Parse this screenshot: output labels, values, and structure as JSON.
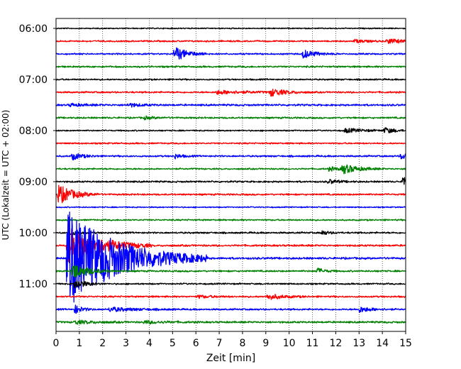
{
  "chart_data": {
    "type": "line",
    "title": "",
    "xlabel": "Zeit  [min]",
    "ylabel": "UTC (Lokalzeit = UTC + 02:00)",
    "xlim": [
      0,
      15
    ],
    "x_ticks": [
      "0",
      "1",
      "2",
      "3",
      "4",
      "5",
      "6",
      "7",
      "8",
      "9",
      "10",
      "11",
      "12",
      "13",
      "14",
      "15"
    ],
    "y_ticks": [
      "06:00",
      "07:00",
      "08:00",
      "09:00",
      "10:00",
      "11:00"
    ],
    "grid": "vertical dotted",
    "colors": [
      "#000000",
      "#ff0000",
      "#0000ff",
      "#008000"
    ],
    "row_interval_min": 15,
    "traces": [
      {
        "start": "06:00",
        "base_amp": 0.7,
        "events": []
      },
      {
        "start": "06:15",
        "base_amp": 0.9,
        "events": [
          {
            "t": 14.2,
            "amp": 3,
            "dur": 0.8
          },
          {
            "t": 12.8,
            "amp": 2,
            "dur": 0.6
          }
        ]
      },
      {
        "start": "06:30",
        "base_amp": 0.9,
        "events": [
          {
            "t": 5.1,
            "amp": 10,
            "dur": 0.5
          },
          {
            "t": 10.6,
            "amp": 6,
            "dur": 0.5
          }
        ]
      },
      {
        "start": "06:45",
        "base_amp": 1.0,
        "events": []
      },
      {
        "start": "07:00",
        "base_amp": 0.9,
        "events": []
      },
      {
        "start": "07:15",
        "base_amp": 1.0,
        "events": [
          {
            "t": 6.9,
            "amp": 2.5,
            "dur": 1.2
          },
          {
            "t": 9.2,
            "amp": 5,
            "dur": 0.6
          }
        ]
      },
      {
        "start": "07:30",
        "base_amp": 1.1,
        "events": [
          {
            "t": 3.1,
            "amp": 2.5,
            "dur": 0.5
          },
          {
            "t": 0.6,
            "amp": 2,
            "dur": 0.5
          }
        ]
      },
      {
        "start": "07:45",
        "base_amp": 1.0,
        "events": [
          {
            "t": 3.8,
            "amp": 2,
            "dur": 0.4
          }
        ]
      },
      {
        "start": "08:00",
        "base_amp": 0.8,
        "events": [
          {
            "t": 12.4,
            "amp": 3,
            "dur": 0.8
          },
          {
            "t": 14.1,
            "amp": 4,
            "dur": 0.4
          }
        ]
      },
      {
        "start": "08:15",
        "base_amp": 0.9,
        "events": []
      },
      {
        "start": "08:30",
        "base_amp": 1.0,
        "events": [
          {
            "t": 0.7,
            "amp": 5,
            "dur": 0.4
          },
          {
            "t": 5.1,
            "amp": 3,
            "dur": 0.3
          },
          {
            "t": 14.8,
            "amp": 4,
            "dur": 0.4
          }
        ]
      },
      {
        "start": "08:45",
        "base_amp": 0.9,
        "events": [
          {
            "t": 12.3,
            "amp": 6,
            "dur": 0.6
          },
          {
            "t": 11.7,
            "amp": 2.5,
            "dur": 0.6
          }
        ]
      },
      {
        "start": "09:00",
        "base_amp": 1.0,
        "events": [
          {
            "t": 14.9,
            "amp": 10,
            "dur": 0.3
          },
          {
            "t": 11.7,
            "amp": 3,
            "dur": 0.4
          }
        ]
      },
      {
        "start": "09:15",
        "base_amp": 1.0,
        "events": [
          {
            "t": 0.1,
            "amp": 14,
            "dur": 0.6
          }
        ]
      },
      {
        "start": "09:30",
        "base_amp": 0.7,
        "events": []
      },
      {
        "start": "09:45",
        "base_amp": 0.9,
        "events": []
      },
      {
        "start": "10:00",
        "base_amp": 1.0,
        "events": [
          {
            "t": 11.4,
            "amp": 3,
            "dur": 0.3
          },
          {
            "t": 0.6,
            "amp": 3,
            "dur": 0.4
          }
        ]
      },
      {
        "start": "10:15",
        "base_amp": 1.1,
        "events": [
          {
            "t": 0.5,
            "amp": 30,
            "dur": 1.2
          }
        ]
      },
      {
        "start": "10:30",
        "base_amp": 1.2,
        "events": [
          {
            "t": 0.5,
            "amp": 70,
            "dur": 2.0
          }
        ]
      },
      {
        "start": "10:45",
        "base_amp": 1.0,
        "events": [
          {
            "t": 11.2,
            "amp": 4,
            "dur": 0.3
          },
          {
            "t": 0.7,
            "amp": 12,
            "dur": 0.6
          }
        ]
      },
      {
        "start": "11:00",
        "base_amp": 0.9,
        "events": [
          {
            "t": 0.8,
            "amp": 8,
            "dur": 0.4
          }
        ]
      },
      {
        "start": "11:15",
        "base_amp": 1.0,
        "events": [
          {
            "t": 9.1,
            "amp": 4,
            "dur": 0.6
          },
          {
            "t": 6.1,
            "amp": 2,
            "dur": 0.5
          }
        ]
      },
      {
        "start": "11:30",
        "base_amp": 1.0,
        "events": [
          {
            "t": 2.3,
            "amp": 3,
            "dur": 1.0
          },
          {
            "t": 13.0,
            "amp": 4,
            "dur": 0.5
          },
          {
            "t": 0.8,
            "amp": 6,
            "dur": 0.3
          }
        ]
      },
      {
        "start": "11:45",
        "base_amp": 1.1,
        "events": [
          {
            "t": 0.8,
            "amp": 2.5,
            "dur": 0.8
          },
          {
            "t": 3.8,
            "amp": 2,
            "dur": 0.8
          }
        ]
      }
    ]
  }
}
